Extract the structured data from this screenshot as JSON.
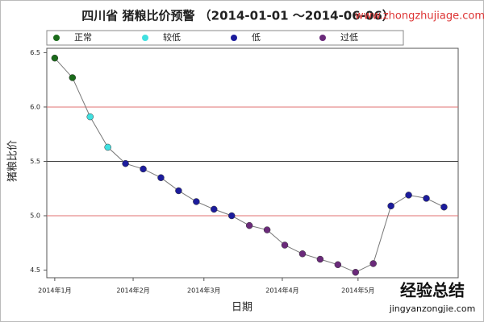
{
  "chart_data": {
    "type": "line",
    "title": "四川省 猪粮比价预警 （2014-01-01 ～2014-06-06）",
    "x_label": "日期",
    "y_label": "猪粮比价",
    "legend": [
      {
        "name": "正常",
        "color": "#1a6b1a"
      },
      {
        "name": "较低",
        "color": "#40e0e0"
      },
      {
        "name": "低",
        "color": "#1c1c9c"
      },
      {
        "name": "过低",
        "color": "#6a2a7a"
      }
    ],
    "x": [
      0,
      1,
      2,
      3,
      4,
      5,
      6,
      7,
      8,
      9,
      10,
      11,
      12,
      13,
      14,
      15,
      16,
      17,
      18,
      19,
      20,
      21,
      22
    ],
    "series": [
      {
        "name": "猪粮比价",
        "color": "#777777",
        "values": [
          6.45,
          6.27,
          5.91,
          5.63,
          5.48,
          5.43,
          5.35,
          5.23,
          5.13,
          5.06,
          5.0,
          4.91,
          4.87,
          4.73,
          4.65,
          4.6,
          4.55,
          4.48,
          4.56,
          5.09,
          5.19,
          5.16,
          5.08
        ],
        "point_colors": [
          "#1a6b1a",
          "#1a6b1a",
          "#40e0e0",
          "#40e0e0",
          "#1c1c9c",
          "#1c1c9c",
          "#1c1c9c",
          "#1c1c9c",
          "#1c1c9c",
          "#1c1c9c",
          "#1c1c9c",
          "#6a2a7a",
          "#6a2a7a",
          "#6a2a7a",
          "#6a2a7a",
          "#6a2a7a",
          "#6a2a7a",
          "#6a2a7a",
          "#6a2a7a",
          "#1c1c9c",
          "#1c1c9c",
          "#1c1c9c",
          "#1c1c9c"
        ]
      }
    ],
    "xlim": [
      -0.45,
      22.8
    ],
    "xticks": [
      {
        "value": 0,
        "label": "2014年1月"
      },
      {
        "value": 4.43,
        "label": "2014年2月"
      },
      {
        "value": 8.43,
        "label": "2014年3月"
      },
      {
        "value": 12.86,
        "label": "2014年4月"
      },
      {
        "value": 17.14,
        "label": "2014年5月"
      }
    ],
    "ylim": [
      4.43,
      6.54
    ],
    "yticks": [
      4.5,
      {
        "value": 5,
        "label": "5.0"
      },
      5.5,
      {
        "value": 6,
        "label": "6.0"
      },
      6.5
    ],
    "reference_lines": [
      {
        "value": 6,
        "color": "#e07070"
      },
      {
        "value": 5.5,
        "color": "#444444"
      },
      {
        "value": 5,
        "color": "#e07070"
      }
    ],
    "watermarks": [
      "www.zhongzhujiage.com",
      "经验总结",
      "jingyanzongjie.com"
    ]
  }
}
